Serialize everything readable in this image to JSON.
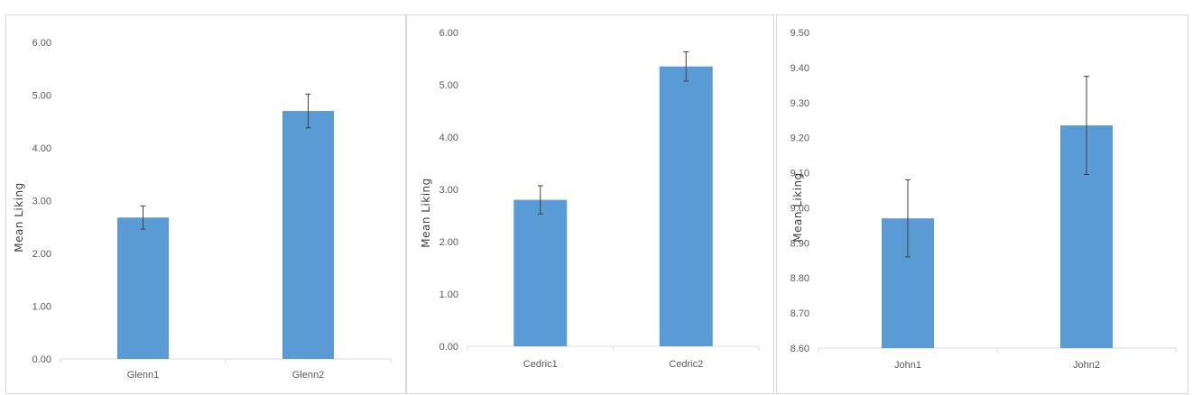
{
  "chart_data": [
    {
      "type": "bar",
      "categories": [
        "Glenn1",
        "Glenn2"
      ],
      "values": [
        2.68,
        4.7
      ],
      "error": [
        0.22,
        0.32
      ],
      "ylabel": "Mean Liking",
      "xlabel": "",
      "ylim": [
        0,
        6
      ],
      "ytick_step": 1,
      "yticks": [
        "0.00",
        "1.00",
        "2.00",
        "3.00",
        "4.00",
        "5.00",
        "6.00"
      ],
      "grid": false,
      "bar_color": "#5b9bd5"
    },
    {
      "type": "bar",
      "categories": [
        "Cedric1",
        "Cedric2"
      ],
      "values": [
        2.8,
        5.35
      ],
      "error": [
        0.27,
        0.28
      ],
      "ylabel": "Mean Liking",
      "xlabel": "",
      "ylim": [
        0,
        6
      ],
      "ytick_step": 1,
      "yticks": [
        "0.00",
        "1.00",
        "2.00",
        "3.00",
        "4.00",
        "5.00",
        "6.00"
      ],
      "grid": false,
      "bar_color": "#5b9bd5"
    },
    {
      "type": "bar",
      "categories": [
        "John1",
        "John2"
      ],
      "values": [
        8.97,
        9.235
      ],
      "error": [
        0.11,
        0.14
      ],
      "ylabel": "Mean Liking",
      "xlabel": "",
      "ylim": [
        8.6,
        9.5
      ],
      "ytick_step": 0.1,
      "yticks": [
        "8.60",
        "8.70",
        "8.80",
        "8.90",
        "9.00",
        "9.10",
        "9.20",
        "9.30",
        "9.40",
        "9.50"
      ],
      "grid": false,
      "bar_color": "#5b9bd5"
    }
  ]
}
